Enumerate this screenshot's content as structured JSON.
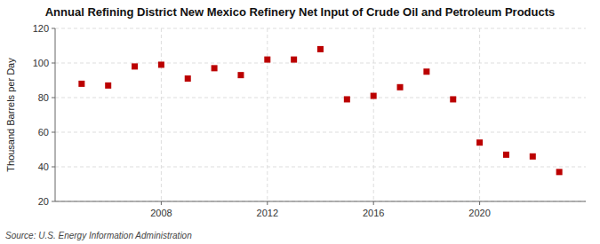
{
  "chart_data": {
    "type": "scatter",
    "title": "Annual Refining District New Mexico Refinery Net Input of Crude Oil and Petroleum Products",
    "ylabel": "Thousand Barrels per Day",
    "annotations": [
      "Source: U.S. Energy Information Administration"
    ],
    "x": [
      2005,
      2006,
      2007,
      2008,
      2009,
      2010,
      2011,
      2012,
      2013,
      2014,
      2015,
      2016,
      2017,
      2018,
      2019,
      2020,
      2021,
      2022,
      2023
    ],
    "values": [
      88,
      87,
      98,
      99,
      91,
      97,
      93,
      102,
      102,
      108,
      79,
      81,
      86,
      95,
      79,
      54,
      47,
      46,
      37
    ],
    "color": "#bb0000",
    "marker": "square",
    "xlim": [
      2004.0,
      2024.0
    ],
    "xticks": [
      2008,
      2012,
      2016,
      2020
    ],
    "ylim": [
      20,
      120
    ],
    "yticks": [
      20,
      40,
      60,
      80,
      100,
      120
    ],
    "grid": true
  }
}
